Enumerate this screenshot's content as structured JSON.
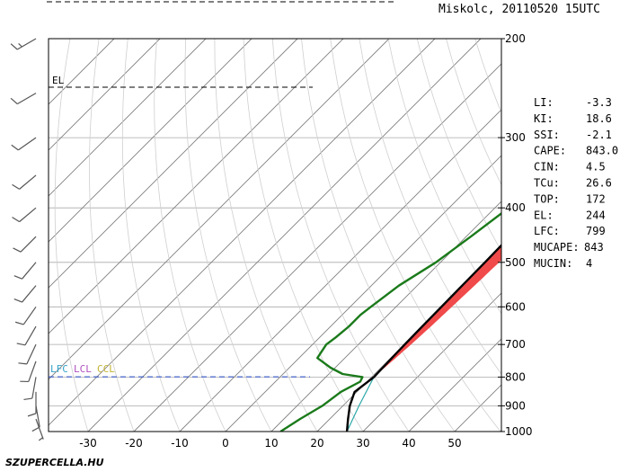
{
  "header": {
    "title": "Miskolc, 20110520 15UTC"
  },
  "logo": {
    "text": "SZUPERCELLA.HU"
  },
  "indices": [
    {
      "label": "LI:",
      "value": "-3.3"
    },
    {
      "label": "KI:",
      "value": "18.6"
    },
    {
      "label": "SSI:",
      "value": "-2.1"
    },
    {
      "label": "CAPE:",
      "value": "843.0"
    },
    {
      "label": "CIN:",
      "value": "4.5"
    },
    {
      "label": "TCu:",
      "value": "26.6"
    },
    {
      "label": "TOP:",
      "value": "172"
    },
    {
      "label": "EL:",
      "value": "244"
    },
    {
      "label": "LFC:",
      "value": "799"
    },
    {
      "label": "MUCAPE:",
      "value": "843"
    },
    {
      "label": "MUCIN:",
      "value": "4"
    }
  ],
  "colors": {
    "temperature": "#000000",
    "dewpoint": "#1a7a1a",
    "cape": "#f04a4a",
    "upper_area": "#1f5fe0",
    "parcel_low": "#2aa7a7",
    "lfc_label": "#35a3c8",
    "lcl_label": "#b14fc0",
    "ccl_label": "#c2b432"
  },
  "level_labels": {
    "el": "EL",
    "lfc": "LFC",
    "lcl": "LCL",
    "ccl": "CCL"
  },
  "chart_data": {
    "type": "line",
    "diagram": "skew-T log-p sounding",
    "x_ticks": [
      -30,
      -20,
      -10,
      0,
      10,
      20,
      30,
      40,
      50
    ],
    "p_ticks": [
      200,
      300,
      400,
      500,
      600,
      700,
      800,
      900,
      1000
    ],
    "xlim": [
      -40,
      50
    ],
    "plim": [
      1000,
      200
    ],
    "y_scale": "log pressure",
    "isotherm_skew": "45 degrees",
    "el_pressure": 244,
    "lfc_pressure": 799,
    "series": [
      {
        "key": "temperature",
        "p": [
          1000,
          950,
          900,
          850,
          800,
          750,
          700,
          650,
          600,
          550,
          500,
          450,
          400,
          350,
          300,
          270,
          250,
          244
        ],
        "t": [
          26.5,
          24.0,
          21.5,
          19.5,
          20.5,
          20.3,
          20.1,
          20.0,
          19.9,
          19.8,
          19.7,
          19.5,
          19.2,
          18.9,
          18.8,
          18.5,
          17.8,
          17.7
        ]
      },
      {
        "key": "dewpoint",
        "p": [
          1000,
          950,
          900,
          850,
          815,
          800,
          790,
          770,
          740,
          700,
          680,
          650,
          620,
          600,
          550,
          500,
          450,
          400,
          350,
          330,
          300,
          280,
          260,
          245,
          230,
          200
        ],
        "t": [
          12,
          13.5,
          15.5,
          16.5,
          18.5,
          18,
          13,
          9,
          4,
          3,
          3.5,
          4,
          4,
          4.5,
          6,
          9,
          11,
          13,
          14.5,
          15,
          15,
          15.5,
          16,
          17,
          18,
          21
        ]
      },
      {
        "key": "parcel",
        "p": [
          1000,
          900,
          800,
          750,
          700,
          650,
          600,
          550,
          500,
          450,
          400,
          350,
          300,
          270,
          250,
          244,
          220,
          200
        ],
        "t": [
          26.5,
          23.5,
          20.5,
          21.0,
          21.5,
          21.9,
          22.2,
          22.5,
          22.8,
          23.0,
          23.1,
          22.9,
          22.0,
          20.6,
          19.0,
          17.7,
          20.5,
          26.5
        ]
      }
    ],
    "wind_barbs": [
      {
        "p": 200,
        "dir": 240,
        "kt": 15
      },
      {
        "p": 250,
        "dir": 240,
        "kt": 10
      },
      {
        "p": 300,
        "dir": 235,
        "kt": 10
      },
      {
        "p": 350,
        "dir": 230,
        "kt": 10
      },
      {
        "p": 400,
        "dir": 230,
        "kt": 10
      },
      {
        "p": 450,
        "dir": 225,
        "kt": 10
      },
      {
        "p": 500,
        "dir": 220,
        "kt": 10
      },
      {
        "p": 550,
        "dir": 220,
        "kt": 10
      },
      {
        "p": 600,
        "dir": 215,
        "kt": 10
      },
      {
        "p": 650,
        "dir": 210,
        "kt": 10
      },
      {
        "p": 700,
        "dir": 205,
        "kt": 10
      },
      {
        "p": 750,
        "dir": 200,
        "kt": 10
      },
      {
        "p": 800,
        "dir": 190,
        "kt": 10
      },
      {
        "p": 850,
        "dir": 180,
        "kt": 10
      },
      {
        "p": 900,
        "dir": 170,
        "kt": 10
      },
      {
        "p": 950,
        "dir": 160,
        "kt": 5
      }
    ]
  }
}
